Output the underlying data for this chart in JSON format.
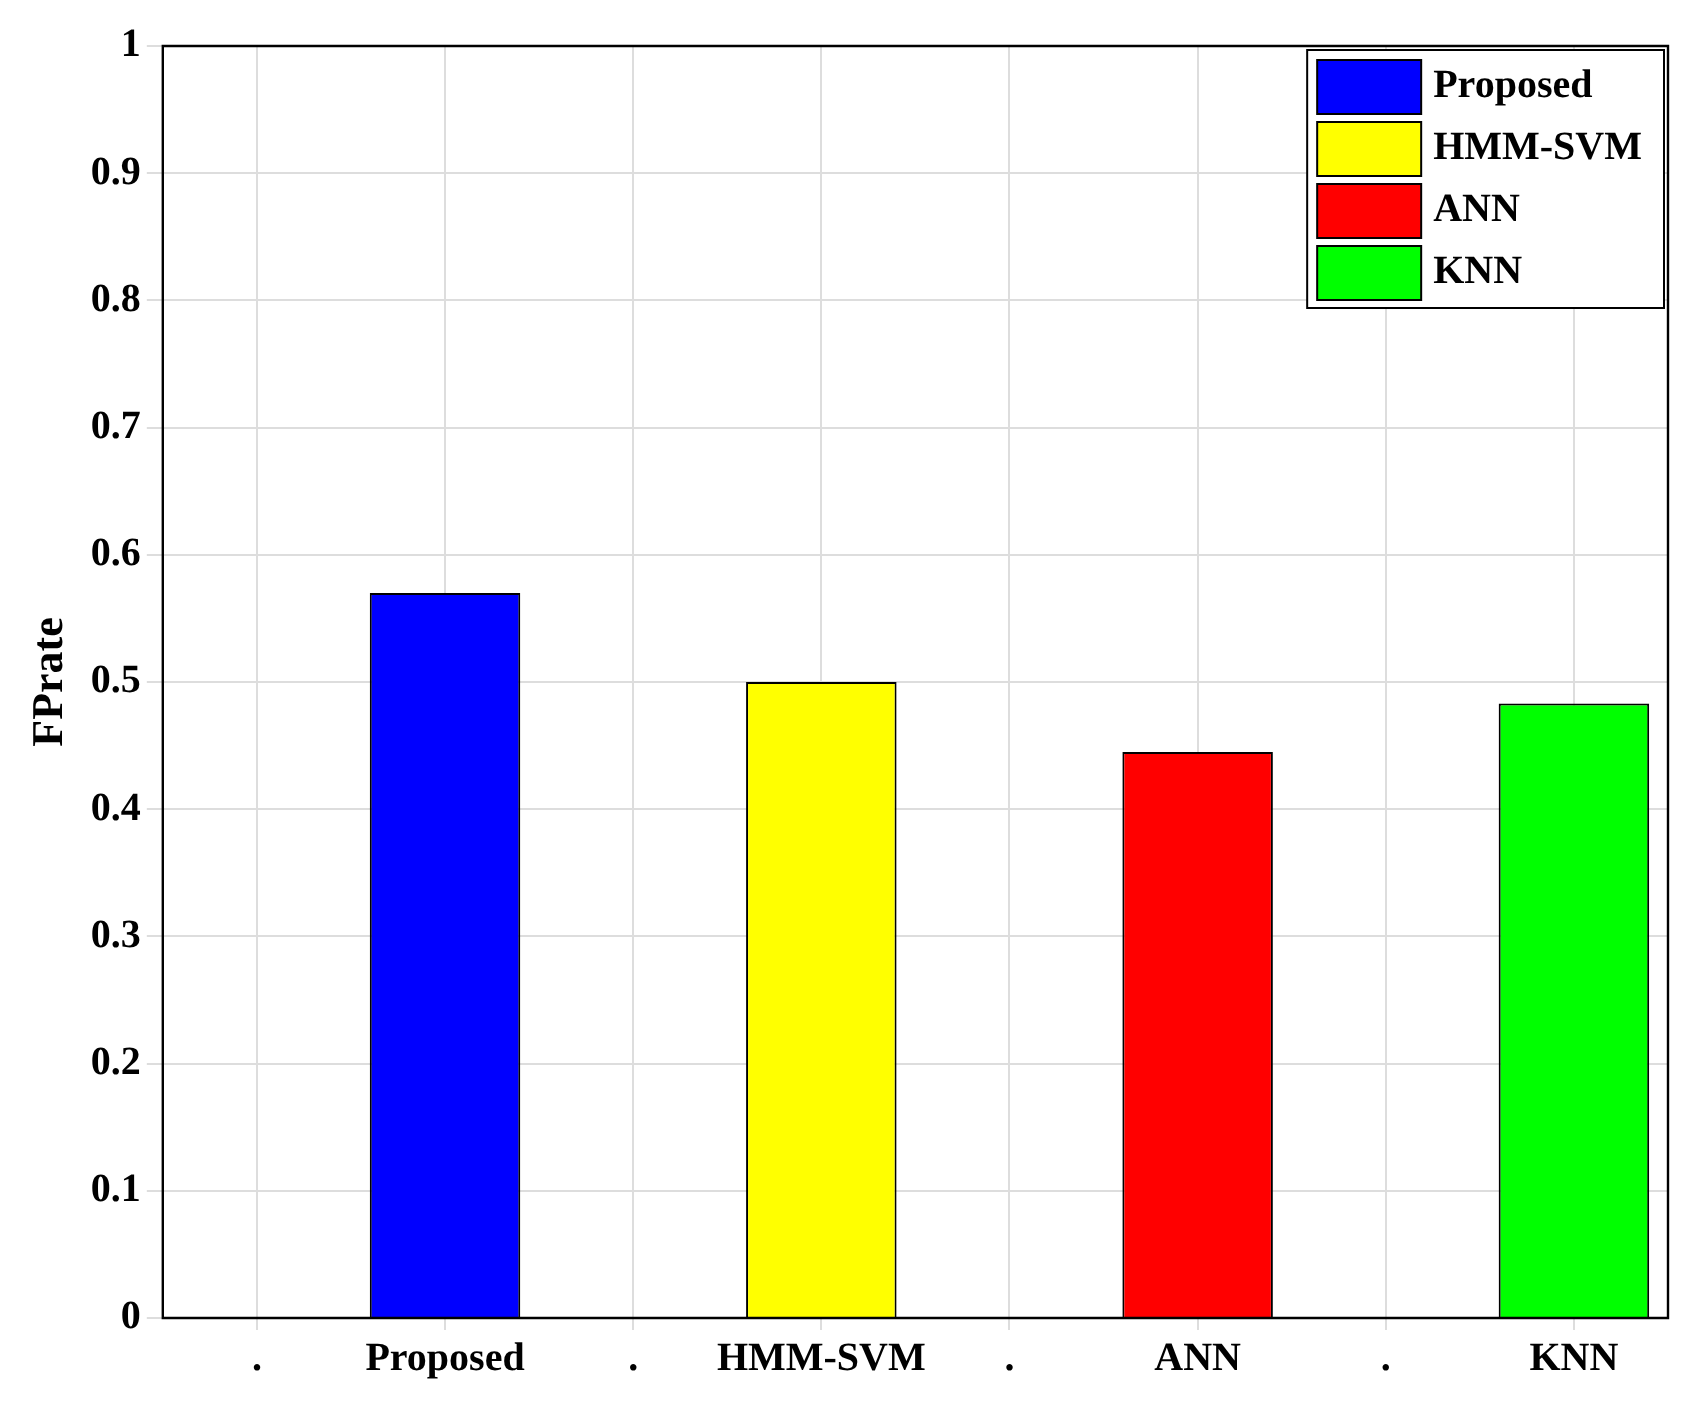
{
  "chart_data": {
    "type": "bar",
    "ylabel": "FPrate",
    "categories": [
      ".",
      "Proposed",
      ".",
      "HMM-SVM",
      ".",
      "ANN",
      ".",
      "KNN"
    ],
    "series": [
      {
        "name": "Proposed",
        "color": "#0000ff",
        "values": [
          null,
          0.57,
          null,
          null,
          null,
          null,
          null,
          null
        ]
      },
      {
        "name": "HMM-SVM",
        "color": "#ffff00",
        "values": [
          null,
          null,
          null,
          0.5,
          null,
          null,
          null,
          null
        ]
      },
      {
        "name": "ANN",
        "color": "#ff0000",
        "values": [
          null,
          null,
          null,
          null,
          null,
          0.445,
          null,
          null
        ]
      },
      {
        "name": "KNN",
        "color": "#00ff00",
        "values": [
          null,
          null,
          null,
          null,
          null,
          null,
          null,
          0.483
        ]
      }
    ],
    "ylim": [
      0,
      1
    ],
    "yticks": [
      0,
      0.1,
      0.2,
      0.3,
      0.4,
      0.5,
      0.6,
      0.7,
      0.8,
      0.9,
      1
    ],
    "grid": true,
    "legend": "top right"
  }
}
